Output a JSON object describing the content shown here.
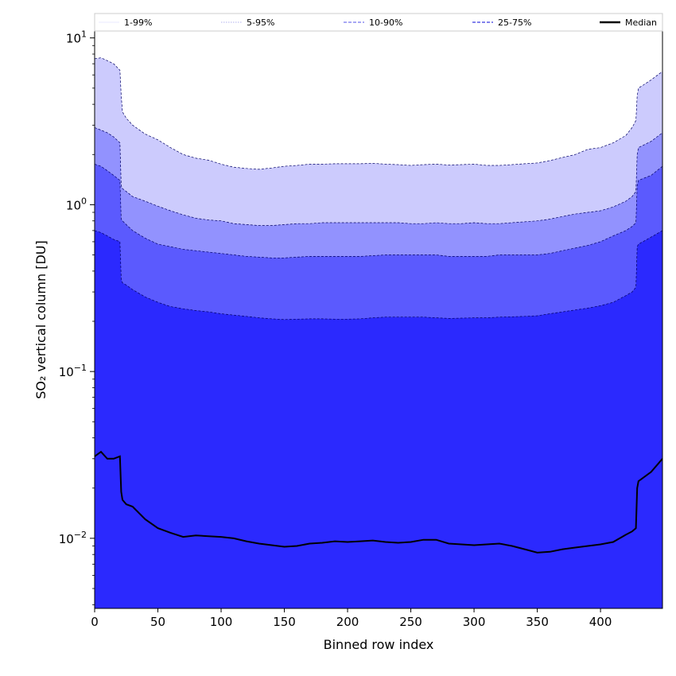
{
  "chart_data": {
    "type": "area",
    "xlabel": "Binned row index",
    "ylabel": "SO₂ vertical column [DU]",
    "xlim": [
      0,
      449
    ],
    "ylim": [
      0.0038,
      11
    ],
    "yscale": "log",
    "x_ticks": [
      0,
      50,
      100,
      150,
      200,
      250,
      300,
      350,
      400
    ],
    "x_tick_labels": [
      "0",
      "50",
      "100",
      "150",
      "200",
      "250",
      "300",
      "350",
      "400"
    ],
    "y_ticks": [
      0.01,
      0.1,
      1,
      10
    ],
    "y_tick_labels": [
      {
        "base": "10",
        "exp": "−2"
      },
      {
        "base": "10",
        "exp": "−1"
      },
      {
        "base": "10",
        "exp": "0"
      },
      {
        "base": "10",
        "exp": "1"
      }
    ],
    "grid": false,
    "legend_position": "top",
    "legend": [
      "1-99%",
      "5-95%",
      "10-90%",
      "25-75%",
      "Median"
    ],
    "x": [
      0,
      5,
      10,
      15,
      20,
      21,
      22,
      25,
      30,
      40,
      50,
      60,
      70,
      80,
      90,
      100,
      110,
      120,
      130,
      140,
      150,
      160,
      170,
      180,
      190,
      200,
      210,
      220,
      230,
      240,
      250,
      260,
      270,
      280,
      290,
      300,
      310,
      320,
      330,
      340,
      350,
      360,
      370,
      380,
      390,
      400,
      410,
      420,
      425,
      428,
      429,
      430,
      440,
      449
    ],
    "series": [
      {
        "name": "1-99%",
        "lower": [
          0.0038,
          0.0038,
          0.0038,
          0.0038,
          0.0038,
          0.0038,
          0.0038,
          0.0038,
          0.0038,
          0.0038,
          0.0038,
          0.0038,
          0.0038,
          0.0038,
          0.0038,
          0.0038,
          0.0038,
          0.0038,
          0.0038,
          0.0038,
          0.0038,
          0.0038,
          0.0038,
          0.0038,
          0.0038,
          0.0038,
          0.0038,
          0.0038,
          0.0038,
          0.0038,
          0.0038,
          0.0038,
          0.0038,
          0.0038,
          0.0038,
          0.0038,
          0.0038,
          0.0038,
          0.0038,
          0.0038,
          0.0038,
          0.0038,
          0.0038,
          0.0038,
          0.0038,
          0.0038,
          0.0038,
          0.0038,
          0.0038,
          0.0038,
          0.0038,
          0.0038,
          0.0038,
          0.0038
        ],
        "upper": [
          11,
          11,
          11,
          11,
          11,
          11,
          11,
          11,
          11,
          11,
          11,
          11,
          11,
          11,
          11,
          11,
          11,
          11,
          11,
          11,
          11,
          11,
          11,
          11,
          11,
          11,
          11,
          11,
          11,
          11,
          11,
          11,
          11,
          11,
          11,
          11,
          11,
          11,
          11,
          11,
          11,
          11,
          11,
          11,
          11,
          11,
          11,
          11,
          11,
          11,
          11,
          11,
          11,
          11
        ]
      },
      {
        "name": "5-95%",
        "lower": [
          0.0038,
          0.0038,
          0.0038,
          0.0038,
          0.0038,
          0.0038,
          0.0038,
          0.0038,
          0.0038,
          0.0038,
          0.0038,
          0.0038,
          0.0038,
          0.0038,
          0.0038,
          0.0038,
          0.0038,
          0.0038,
          0.0038,
          0.0038,
          0.0038,
          0.0038,
          0.0038,
          0.0038,
          0.0038,
          0.0038,
          0.0038,
          0.0038,
          0.0038,
          0.0038,
          0.0038,
          0.0038,
          0.0038,
          0.0038,
          0.0038,
          0.0038,
          0.0038,
          0.0038,
          0.0038,
          0.0038,
          0.0038,
          0.0038,
          0.0038,
          0.0038,
          0.0038,
          0.0038,
          0.0038,
          0.0038,
          0.0038,
          0.0038,
          0.0038,
          0.0038,
          0.0038,
          0.0038
        ],
        "upper": [
          7.5,
          7.6,
          7.3,
          7.0,
          6.4,
          4.5,
          3.6,
          3.3,
          3.0,
          2.65,
          2.45,
          2.2,
          2.0,
          1.9,
          1.85,
          1.75,
          1.68,
          1.65,
          1.63,
          1.66,
          1.7,
          1.72,
          1.75,
          1.75,
          1.76,
          1.76,
          1.76,
          1.77,
          1.75,
          1.74,
          1.72,
          1.74,
          1.75,
          1.73,
          1.74,
          1.75,
          1.72,
          1.72,
          1.74,
          1.76,
          1.78,
          1.84,
          1.92,
          2.0,
          2.15,
          2.2,
          2.35,
          2.6,
          2.9,
          3.2,
          4.5,
          5.0,
          5.6,
          6.3
        ]
      },
      {
        "name": "10-90%",
        "lower": [
          0.0038,
          0.0038,
          0.0038,
          0.0038,
          0.0038,
          0.0038,
          0.0038,
          0.0038,
          0.0038,
          0.0038,
          0.0038,
          0.0038,
          0.0038,
          0.0038,
          0.0038,
          0.0038,
          0.0038,
          0.0038,
          0.0038,
          0.0038,
          0.0038,
          0.0038,
          0.0038,
          0.0038,
          0.0038,
          0.0038,
          0.0038,
          0.0038,
          0.0038,
          0.0038,
          0.0038,
          0.0038,
          0.0038,
          0.0038,
          0.0038,
          0.0038,
          0.0038,
          0.0038,
          0.0038,
          0.0038,
          0.0038,
          0.0038,
          0.0038,
          0.0038,
          0.0038,
          0.0038,
          0.0038,
          0.0038,
          0.0038,
          0.0038,
          0.0038,
          0.0038,
          0.0038,
          0.0038
        ],
        "upper": [
          2.9,
          2.8,
          2.7,
          2.55,
          2.35,
          1.3,
          1.25,
          1.2,
          1.12,
          1.05,
          0.98,
          0.92,
          0.87,
          0.83,
          0.81,
          0.8,
          0.77,
          0.76,
          0.75,
          0.75,
          0.76,
          0.77,
          0.77,
          0.78,
          0.78,
          0.78,
          0.78,
          0.78,
          0.78,
          0.78,
          0.77,
          0.77,
          0.78,
          0.77,
          0.77,
          0.78,
          0.77,
          0.77,
          0.78,
          0.79,
          0.8,
          0.82,
          0.85,
          0.88,
          0.9,
          0.92,
          0.97,
          1.05,
          1.12,
          1.2,
          2.0,
          2.2,
          2.4,
          2.7
        ]
      },
      {
        "name": "25-75%",
        "lower": [
          0.0038,
          0.0038,
          0.0038,
          0.0038,
          0.0038,
          0.0038,
          0.0038,
          0.0038,
          0.0038,
          0.0038,
          0.0038,
          0.0038,
          0.0038,
          0.0038,
          0.0038,
          0.0038,
          0.0038,
          0.0038,
          0.0038,
          0.0038,
          0.0038,
          0.0038,
          0.0038,
          0.0038,
          0.0038,
          0.0038,
          0.0038,
          0.0038,
          0.0038,
          0.0038,
          0.0038,
          0.0038,
          0.0038,
          0.0038,
          0.0038,
          0.0038,
          0.0038,
          0.0038,
          0.0038,
          0.0038,
          0.0038,
          0.0038,
          0.0038,
          0.0038,
          0.0038,
          0.0038,
          0.0038,
          0.0038,
          0.0038,
          0.0038,
          0.0038,
          0.0038,
          0.0038,
          0.0038
        ],
        "upper": [
          1.75,
          1.7,
          1.6,
          1.5,
          1.4,
          0.82,
          0.8,
          0.76,
          0.7,
          0.63,
          0.58,
          0.56,
          0.54,
          0.53,
          0.52,
          0.51,
          0.5,
          0.49,
          0.485,
          0.48,
          0.48,
          0.485,
          0.49,
          0.49,
          0.49,
          0.49,
          0.49,
          0.495,
          0.5,
          0.5,
          0.5,
          0.5,
          0.5,
          0.49,
          0.49,
          0.49,
          0.49,
          0.5,
          0.5,
          0.5,
          0.5,
          0.51,
          0.53,
          0.55,
          0.57,
          0.6,
          0.65,
          0.7,
          0.74,
          0.78,
          1.3,
          1.4,
          1.5,
          1.7
        ]
      },
      {
        "name": "",
        "lower": [
          0.0038,
          0.0038,
          0.0038,
          0.0038,
          0.0038,
          0.0038,
          0.0038,
          0.0038,
          0.0038,
          0.0038,
          0.0038,
          0.0038,
          0.0038,
          0.0038,
          0.0038,
          0.0038,
          0.0038,
          0.0038,
          0.0038,
          0.0038,
          0.0038,
          0.0038,
          0.0038,
          0.0038,
          0.0038,
          0.0038,
          0.0038,
          0.0038,
          0.0038,
          0.0038,
          0.0038,
          0.0038,
          0.0038,
          0.0038,
          0.0038,
          0.0038,
          0.0038,
          0.0038,
          0.0038,
          0.0038,
          0.0038,
          0.0038,
          0.0038,
          0.0038,
          0.0038,
          0.0038,
          0.0038,
          0.0038,
          0.0038,
          0.0038,
          0.0038,
          0.0038,
          0.0038,
          0.0038
        ],
        "upper": [
          0.7,
          0.68,
          0.65,
          0.62,
          0.6,
          0.36,
          0.34,
          0.33,
          0.31,
          0.28,
          0.26,
          0.245,
          0.238,
          0.232,
          0.228,
          0.222,
          0.218,
          0.214,
          0.21,
          0.207,
          0.205,
          0.206,
          0.207,
          0.207,
          0.206,
          0.206,
          0.207,
          0.21,
          0.212,
          0.212,
          0.212,
          0.212,
          0.21,
          0.208,
          0.209,
          0.21,
          0.21,
          0.212,
          0.213,
          0.214,
          0.216,
          0.222,
          0.228,
          0.234,
          0.24,
          0.248,
          0.26,
          0.285,
          0.3,
          0.32,
          0.56,
          0.58,
          0.64,
          0.7
        ]
      },
      {
        "name": "Median",
        "values": [
          0.031,
          0.033,
          0.03,
          0.03,
          0.031,
          0.019,
          0.017,
          0.016,
          0.0155,
          0.013,
          0.0115,
          0.0108,
          0.0102,
          0.0104,
          0.0103,
          0.0102,
          0.01,
          0.0096,
          0.0093,
          0.0091,
          0.0089,
          0.009,
          0.0093,
          0.0094,
          0.0096,
          0.0095,
          0.0096,
          0.0097,
          0.0095,
          0.0094,
          0.0095,
          0.0098,
          0.0098,
          0.0093,
          0.0092,
          0.0091,
          0.0092,
          0.0093,
          0.009,
          0.0086,
          0.0082,
          0.0083,
          0.0086,
          0.0088,
          0.009,
          0.0092,
          0.0095,
          0.0105,
          0.011,
          0.0115,
          0.02,
          0.022,
          0.025,
          0.03
        ]
      }
    ],
    "colors": {
      "band_1_99": "#ffffff",
      "band_5_95": "#cccbfd",
      "band_10_90": "#9292fe",
      "band_25_75": "#5b5afe",
      "band_inner": "#2b29fe",
      "median": "#000000",
      "legend_1_99": "#e8e8ff",
      "legend_5_95": "#b0b0ee",
      "legend_10_90": "#8c8cf0",
      "legend_25_75": "#5a5ae6"
    }
  }
}
